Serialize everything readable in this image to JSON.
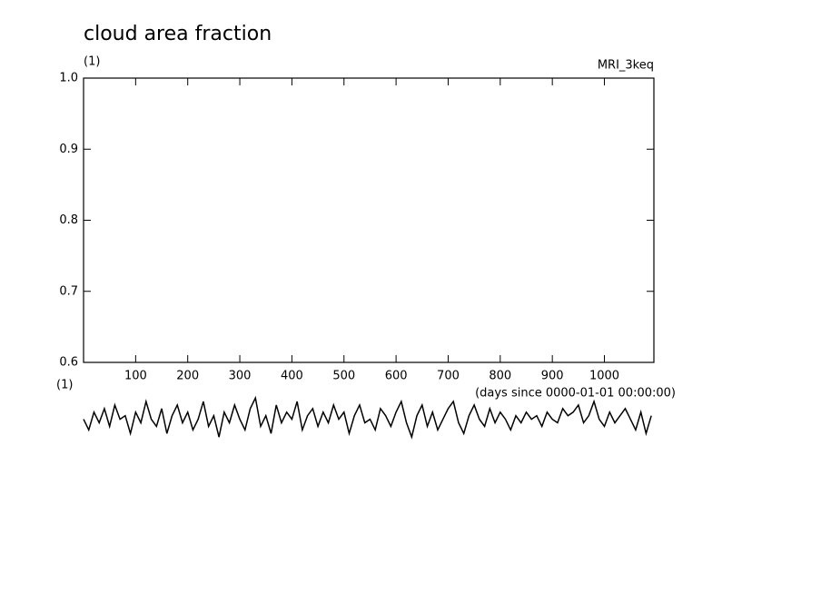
{
  "chart_data": {
    "type": "line",
    "title": "cloud area fraction",
    "subtitle_left": "(1)",
    "subtitle_right": "MRI_3keq",
    "lower_left_label": "(1)",
    "xlabel": "(days since 0000-01-01 00:00:00)",
    "xlim": [
      0,
      1095
    ],
    "ylim": [
      0.6,
      1.0
    ],
    "xticks": [
      100,
      200,
      300,
      400,
      500,
      600,
      700,
      800,
      900,
      1000
    ],
    "yticks": [
      0.6,
      0.7,
      0.8,
      0.9,
      {
        "value": 1,
        "label": "1.0"
      }
    ],
    "x": [
      0,
      10,
      20,
      30,
      40,
      50,
      60,
      70,
      80,
      90,
      100,
      110,
      120,
      130,
      140,
      150,
      160,
      170,
      180,
      190,
      200,
      210,
      220,
      230,
      240,
      250,
      260,
      270,
      280,
      290,
      300,
      310,
      320,
      330,
      340,
      350,
      360,
      370,
      380,
      390,
      400,
      410,
      420,
      430,
      440,
      450,
      460,
      470,
      480,
      490,
      500,
      510,
      520,
      530,
      540,
      550,
      560,
      570,
      580,
      590,
      600,
      610,
      620,
      630,
      640,
      650,
      660,
      670,
      680,
      690,
      700,
      710,
      720,
      730,
      740,
      750,
      760,
      770,
      780,
      790,
      800,
      810,
      820,
      830,
      840,
      850,
      860,
      870,
      880,
      890,
      900,
      910,
      920,
      930,
      940,
      950,
      960,
      970,
      980,
      990,
      1000,
      1010,
      1020,
      1030,
      1040,
      1050,
      1060,
      1070,
      1080,
      1090
    ],
    "series": [
      {
        "color": "#000000",
        "values": [
          0.52,
          0.505,
          0.53,
          0.515,
          0.535,
          0.51,
          0.54,
          0.52,
          0.525,
          0.5,
          0.53,
          0.515,
          0.545,
          0.52,
          0.51,
          0.535,
          0.5,
          0.525,
          0.54,
          0.515,
          0.53,
          0.505,
          0.52,
          0.545,
          0.51,
          0.525,
          0.495,
          0.53,
          0.515,
          0.54,
          0.52,
          0.505,
          0.535,
          0.55,
          0.51,
          0.525,
          0.5,
          0.54,
          0.515,
          0.53,
          0.52,
          0.545,
          0.505,
          0.525,
          0.535,
          0.51,
          0.53,
          0.515,
          0.54,
          0.52,
          0.53,
          0.5,
          0.525,
          0.54,
          0.515,
          0.52,
          0.505,
          0.535,
          0.525,
          0.51,
          0.53,
          0.545,
          0.515,
          0.495,
          0.525,
          0.54,
          0.51,
          0.53,
          0.505,
          0.52,
          0.535,
          0.545,
          0.515,
          0.5,
          0.525,
          0.54,
          0.52,
          0.51,
          0.535,
          0.515,
          0.53,
          0.52,
          0.505,
          0.525,
          0.515,
          0.53,
          0.52,
          0.525,
          0.51,
          0.53,
          0.52,
          0.515,
          0.535,
          0.525,
          0.53,
          0.54,
          0.515,
          0.525,
          0.545,
          0.52,
          0.51,
          0.53,
          0.515,
          0.525,
          0.535,
          0.52,
          0.505,
          0.53,
          0.5,
          0.525
        ]
      }
    ]
  }
}
